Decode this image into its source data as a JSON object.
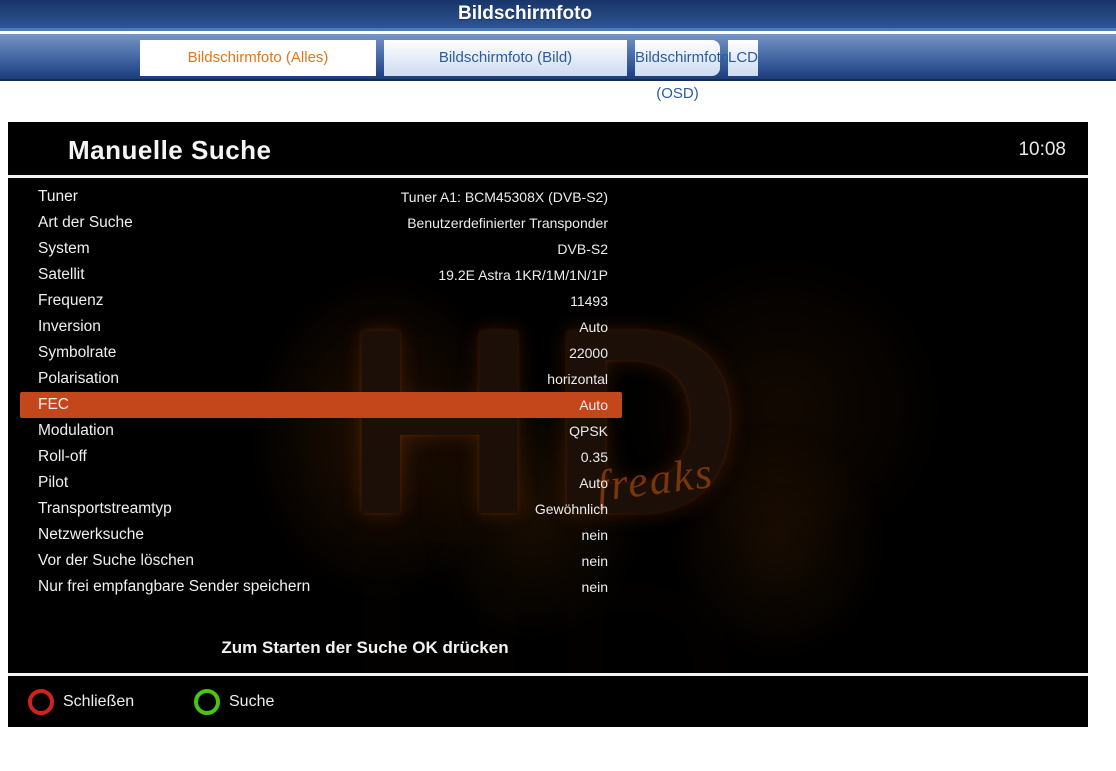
{
  "header": {
    "title": "Bildschirmfoto"
  },
  "tabs": [
    {
      "name": "tab-bildschirmfoto-alles",
      "label": "Bildschirmfoto (Alles)",
      "active": true
    },
    {
      "name": "tab-bildschirmfoto-bild",
      "label": "Bildschirmfoto (Bild)",
      "active": false
    },
    {
      "name": "tab-bildschirmfoto-osd",
      "label": "Bildschirmfoto (OSD)",
      "active": false
    },
    {
      "name": "tab-lcd",
      "label": "LCD",
      "active": false
    }
  ],
  "osd": {
    "title": "Manuelle Suche",
    "clock": "10:08",
    "rows": [
      {
        "label": "Tuner",
        "value": "Tuner A1: BCM45308X (DVB-S2)",
        "highlighted": false
      },
      {
        "label": "Art der Suche",
        "value": "Benutzerdefinierter Transponder",
        "highlighted": false
      },
      {
        "label": "System",
        "value": "DVB-S2",
        "highlighted": false
      },
      {
        "label": "Satellit",
        "value": "19.2E Astra 1KR/1M/1N/1P",
        "highlighted": false
      },
      {
        "label": "Frequenz",
        "value": "11493",
        "highlighted": false
      },
      {
        "label": "Inversion",
        "value": "Auto",
        "highlighted": false
      },
      {
        "label": "Symbolrate",
        "value": "22000",
        "highlighted": false
      },
      {
        "label": "Polarisation",
        "value": "horizontal",
        "highlighted": false
      },
      {
        "label": "FEC",
        "value": "Auto",
        "highlighted": true
      },
      {
        "label": "Modulation",
        "value": "QPSK",
        "highlighted": false
      },
      {
        "label": "Roll-off",
        "value": "0.35",
        "highlighted": false
      },
      {
        "label": "Pilot",
        "value": "Auto",
        "highlighted": false
      },
      {
        "label": "Transportstreamtyp",
        "value": "Gewöhnlich",
        "highlighted": false
      },
      {
        "label": "Netzwerksuche",
        "value": "nein",
        "highlighted": false
      },
      {
        "label": "Vor der Suche löschen",
        "value": "nein",
        "highlighted": false
      },
      {
        "label": "Nur frei empfangbare Sender speichern",
        "value": "nein",
        "highlighted": false
      }
    ],
    "hint": "Zum Starten der Suche OK drücken",
    "buttons": [
      {
        "name": "close-button",
        "label": "Schließen",
        "color": "#d32020"
      },
      {
        "name": "search-button",
        "label": "Suche",
        "color": "#49c514"
      }
    ],
    "watermark": {
      "big": "HD",
      "script": "freaks"
    }
  },
  "colors": {
    "highlight_row": "#c3471a",
    "active_tab_text": "#e1761c",
    "inactive_tab_text": "#2b5c9e",
    "red_button_ring": "#d32020",
    "green_button_ring": "#49c514"
  }
}
